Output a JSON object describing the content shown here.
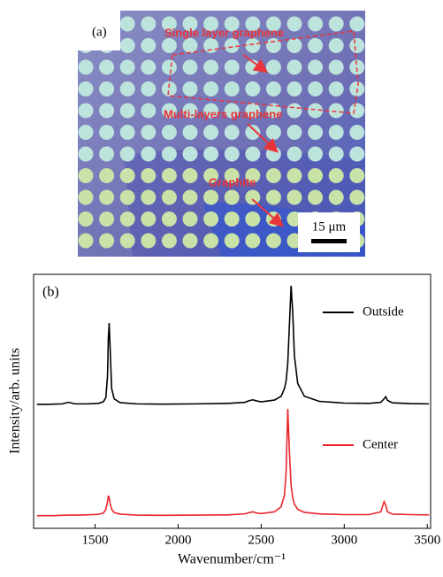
{
  "photo": {
    "label": "(a)",
    "annotations": [
      "Single layer graphene",
      "Multi-layers graphene",
      "Graphite"
    ],
    "scale_bar": "15 μm"
  },
  "chart_data": {
    "type": "line",
    "panel_label": "(b)",
    "xlabel": "Wavenumber/cm⁻¹",
    "ylabel": "Intensity/arb. units",
    "xlim": [
      1130,
      3520
    ],
    "xticks": [
      1500,
      2000,
      2500,
      3000,
      3500
    ],
    "ylim": [
      0,
      100
    ],
    "x": [
      1150,
      1200,
      1250,
      1300,
      1340,
      1380,
      1450,
      1520,
      1550,
      1565,
      1575,
      1580,
      1585,
      1590,
      1600,
      1615,
      1650,
      1750,
      1900,
      2100,
      2300,
      2400,
      2430,
      2450,
      2470,
      2500,
      2580,
      2620,
      2640,
      2650,
      2660,
      2670,
      2680,
      2690,
      2700,
      2720,
      2760,
      2850,
      3000,
      3150,
      3220,
      3240,
      3250,
      3260,
      3290,
      3400,
      3510
    ],
    "series": [
      {
        "name": "Outside",
        "color": "#000000",
        "values": [
          48.8,
          48.8,
          48.9,
          49.0,
          49.6,
          49.0,
          49.0,
          49.2,
          49.8,
          51.5,
          60,
          75,
          80.8,
          72,
          55,
          51,
          49.5,
          49.0,
          48.9,
          49.0,
          49.2,
          49.6,
          50.3,
          50.6,
          50.2,
          49.8,
          50.5,
          52,
          55,
          58,
          65,
          80,
          95.5,
          85,
          68,
          57,
          52,
          50,
          49.3,
          49.2,
          49.6,
          51,
          51.8,
          50.4,
          49.4,
          49.1,
          49.0
        ]
      },
      {
        "name": "Center",
        "color": "#e8262b",
        "values": [
          5,
          5,
          5,
          5.1,
          5.2,
          5.2,
          5.3,
          5.5,
          6,
          7.5,
          10.5,
          12.9,
          12,
          10,
          7.5,
          6.2,
          5.6,
          5.2,
          5.1,
          5.2,
          5.3,
          5.7,
          6.2,
          6.5,
          6.1,
          5.8,
          6.5,
          8.5,
          13,
          22,
          47,
          30,
          17,
          12,
          9.5,
          7.5,
          6.3,
          5.7,
          5.4,
          5.4,
          6.5,
          10.5,
          9,
          6.5,
          5.6,
          5.4,
          5.3
        ]
      }
    ]
  }
}
